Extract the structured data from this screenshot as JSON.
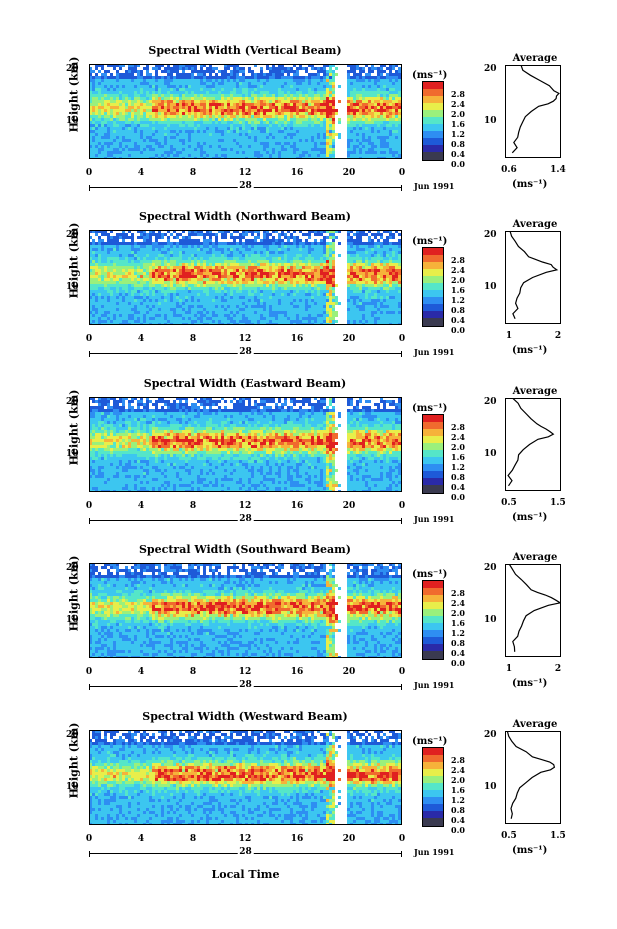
{
  "figure": {
    "xaxis_title": "Local Time",
    "ylabel": "Height (km)",
    "unit_label": "(ms⁻¹)",
    "avg_unit_label": "(ms⁻¹)",
    "avg_title": "Average",
    "month_label": "Jun 1991",
    "x_ticks": [
      "0",
      "4",
      "8",
      "12",
      "16",
      "20",
      "0"
    ],
    "y_ticks": [
      "20",
      "10"
    ],
    "colorbar_ticks": [
      "2.8",
      "2.4",
      "2.0",
      "1.6",
      "1.2",
      "0.8",
      "0.4",
      "0.0"
    ]
  },
  "colors": {
    "colormap": [
      "#2a2aa8",
      "#1e5ad8",
      "#2e8ef2",
      "#3cc6f0",
      "#55e6c8",
      "#9af07c",
      "#e8ee4a",
      "#f6b23a",
      "#f06a2e",
      "#e02020"
    ],
    "zero_band": "#3a3a50"
  },
  "panels": [
    {
      "title": "Spectral Width (Vertical Beam)",
      "day_label": "28",
      "avg_xticks": [
        "0.6",
        "1.4"
      ]
    },
    {
      "title": "Spectral Width (Northward Beam)",
      "day_label": "28",
      "avg_xticks": [
        "1",
        "2"
      ]
    },
    {
      "title": "Spectral Width (Eastward Beam)",
      "day_label": "28",
      "avg_xticks": [
        "0.5",
        "1.5"
      ]
    },
    {
      "title": "Spectral Width (Southward Beam)",
      "day_label": "28",
      "avg_xticks": [
        "1",
        "2"
      ]
    },
    {
      "title": "Spectral Width (Westward Beam)",
      "day_label": "28",
      "avg_xticks": [
        "0.5",
        "1.5"
      ]
    }
  ],
  "chart_data": [
    {
      "type": "heatmap",
      "title": "Spectral Width (Vertical Beam)",
      "xlabel": "Local Time",
      "ylabel": "Height (km)",
      "xlim": [
        0,
        24
      ],
      "ylim": [
        2,
        20
      ],
      "colorbar": {
        "label": "(ms⁻¹)",
        "range": [
          0,
          2.8
        ]
      }
    },
    {
      "type": "line",
      "title": "Average",
      "xlabel": "(ms⁻¹)",
      "xlim": [
        0.6,
        1.4
      ],
      "ylim": [
        2,
        20
      ],
      "series": [
        {
          "x": [
            0.72,
            0.76,
            0.74,
            0.78,
            0.8,
            0.82,
            0.85,
            0.9,
            0.98,
            1.08,
            1.2,
            1.28,
            1.34,
            1.32,
            1.36,
            1.3,
            1.22,
            1.1,
            0.96,
            0.86,
            0.82
          ],
          "y": [
            3,
            4,
            5,
            6,
            7,
            8,
            9,
            10,
            11,
            12,
            12.5,
            13,
            13.5,
            14,
            14.5,
            15,
            16,
            17,
            18,
            19,
            20
          ]
        }
      ]
    },
    {
      "type": "heatmap",
      "title": "Spectral Width (Northward Beam)",
      "xlabel": "Local Time",
      "ylabel": "Height (km)",
      "xlim": [
        0,
        24
      ],
      "ylim": [
        2,
        20
      ],
      "colorbar": {
        "label": "(ms⁻¹)",
        "range": [
          0,
          2.8
        ]
      }
    },
    {
      "type": "line",
      "title": "Average",
      "xlabel": "(ms⁻¹)",
      "xlim": [
        0.6,
        2.2
      ],
      "ylim": [
        2,
        20
      ],
      "series": [
        {
          "x": [
            0.9,
            0.85,
            0.95,
            0.9,
            0.95,
            1.0,
            1.05,
            1.15,
            1.4,
            1.8,
            2.1,
            2.0,
            1.9,
            1.7,
            1.5,
            1.3,
            1.15,
            1.0,
            0.9,
            0.8,
            0.75
          ],
          "y": [
            3,
            4,
            5,
            6,
            7,
            8,
            9,
            10,
            11,
            12,
            12.5,
            13,
            13.5,
            14,
            14.5,
            15,
            16,
            17,
            18,
            19,
            20
          ]
        }
      ]
    },
    {
      "type": "heatmap",
      "title": "Spectral Width (Eastward Beam)",
      "xlabel": "Local Time",
      "ylabel": "Height (km)",
      "xlim": [
        0,
        24
      ],
      "ylim": [
        2,
        20
      ],
      "colorbar": {
        "label": "(ms⁻¹)",
        "range": [
          0,
          2.8
        ]
      }
    },
    {
      "type": "line",
      "title": "Average",
      "xlabel": "(ms⁻¹)",
      "xlim": [
        0.4,
        1.8
      ],
      "ylim": [
        2,
        20
      ],
      "series": [
        {
          "x": [
            0.5,
            0.55,
            0.5,
            0.6,
            0.65,
            0.7,
            0.75,
            0.85,
            1.0,
            1.2,
            1.5,
            1.6,
            1.55,
            1.45,
            1.3,
            1.2,
            1.05,
            0.9,
            0.8,
            0.7,
            0.6
          ],
          "y": [
            3,
            4,
            5,
            6,
            7,
            8,
            9,
            10,
            11,
            12,
            12.5,
            13,
            13.5,
            14,
            14.5,
            15,
            16,
            17,
            18,
            19,
            20
          ]
        }
      ]
    },
    {
      "type": "heatmap",
      "title": "Spectral Width (Southward Beam)",
      "xlabel": "Local Time",
      "ylabel": "Height (km)",
      "xlim": [
        0,
        24
      ],
      "ylim": [
        2,
        20
      ],
      "colorbar": {
        "label": "(ms⁻¹)",
        "range": [
          0,
          2.8
        ]
      }
    },
    {
      "type": "line",
      "title": "Average",
      "xlabel": "(ms⁻¹)",
      "xlim": [
        0.6,
        2.2
      ],
      "ylim": [
        2,
        20
      ],
      "series": [
        {
          "x": [
            0.85,
            0.9,
            0.85,
            0.95,
            1.0,
            1.05,
            1.1,
            1.2,
            1.45,
            1.85,
            2.15,
            2.05,
            1.95,
            1.75,
            1.55,
            1.35,
            1.2,
            1.05,
            0.9,
            0.8,
            0.75
          ],
          "y": [
            3,
            4,
            5,
            6,
            7,
            8,
            9,
            10,
            11,
            12,
            12.5,
            13,
            13.5,
            14,
            14.5,
            15,
            16,
            17,
            18,
            19,
            20
          ]
        }
      ]
    },
    {
      "type": "heatmap",
      "title": "Spectral Width (Westward Beam)",
      "xlabel": "Local Time",
      "ylabel": "Height (km)",
      "xlim": [
        0,
        24
      ],
      "ylim": [
        2,
        20
      ],
      "colorbar": {
        "label": "(ms⁻¹)",
        "range": [
          0,
          2.8
        ]
      }
    },
    {
      "type": "line",
      "title": "Average",
      "xlabel": "(ms⁻¹)",
      "xlim": [
        0.4,
        1.8
      ],
      "ylim": [
        2,
        20
      ],
      "series": [
        {
          "x": [
            0.55,
            0.6,
            0.55,
            0.6,
            0.65,
            0.7,
            0.78,
            0.9,
            1.05,
            1.3,
            1.55,
            1.65,
            1.6,
            1.5,
            1.3,
            1.1,
            0.9,
            0.7,
            0.55,
            0.5,
            0.45
          ],
          "y": [
            3,
            4,
            5,
            6,
            7,
            8,
            9,
            10,
            11,
            12,
            12.5,
            13,
            13.5,
            14,
            14.5,
            15,
            16,
            17,
            18,
            19,
            20
          ]
        }
      ]
    }
  ]
}
